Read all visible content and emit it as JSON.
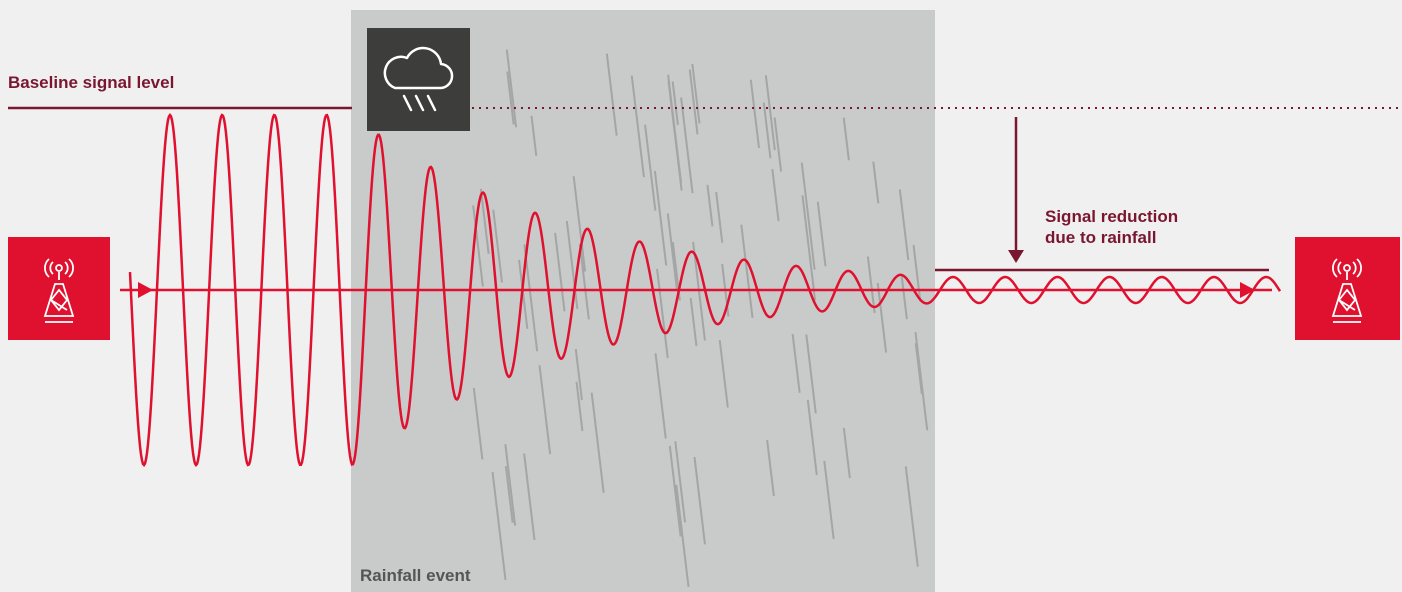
{
  "labels": {
    "baseline": "Baseline signal level",
    "reduction": [
      "Signal reduction",
      "due to rainfall"
    ],
    "rainfall": "Rainfall event"
  }
}
